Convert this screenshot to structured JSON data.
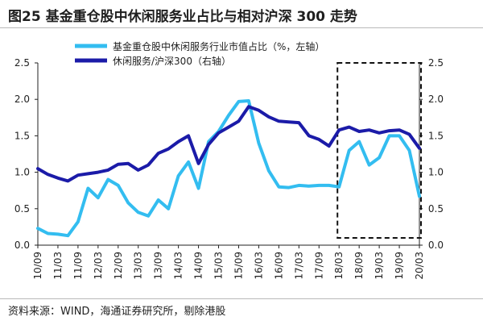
{
  "title": "图25 基金重仓股中休闲服务业占比与相对沪深 300 走势",
  "source": "资料来源：WIND，海通证券研究所，剔除港股",
  "colors": {
    "light_series": "#33bdf0",
    "dark_series": "#1b1ba8",
    "axis": "#222222",
    "highlight_box": "#111111"
  },
  "chart_data": {
    "type": "line",
    "title": "",
    "xlabel": "",
    "ylabel_left": "",
    "ylabel_right": "",
    "ylim_left": [
      0,
      2.5
    ],
    "ylim_right": [
      0,
      2.5
    ],
    "yticks_left": [
      "0.0",
      "0.5",
      "1.0",
      "1.5",
      "2.0",
      "2.5"
    ],
    "yticks_right": [
      "0.0",
      "0.5",
      "1.0",
      "1.5",
      "2.0",
      "2.5"
    ],
    "grid": false,
    "legend_position": "top-center",
    "x_tick_labels": [
      "10/09",
      "11/03",
      "11/09",
      "12/03",
      "12/09",
      "13/03",
      "13/09",
      "14/03",
      "14/09",
      "15/03",
      "15/09",
      "16/03",
      "16/09",
      "17/03",
      "17/09",
      "18/03",
      "18/09",
      "19/03",
      "19/09",
      "20/03"
    ],
    "x": [
      "10/09",
      "10/12",
      "11/03",
      "11/06",
      "11/09",
      "11/12",
      "12/03",
      "12/06",
      "12/09",
      "12/12",
      "13/03",
      "13/06",
      "13/09",
      "13/12",
      "14/03",
      "14/06",
      "14/09",
      "14/12",
      "15/03",
      "15/06",
      "15/09",
      "15/12",
      "16/03",
      "16/06",
      "16/09",
      "16/12",
      "17/03",
      "17/06",
      "17/09",
      "17/12",
      "18/03",
      "18/06",
      "18/09",
      "18/12",
      "19/03",
      "19/06",
      "19/09",
      "19/12",
      "20/03"
    ],
    "series": [
      {
        "name": "基金重仓股中休闲服务行业市值占比（%，左轴）",
        "axis": "left",
        "values": [
          0.23,
          0.16,
          0.15,
          0.13,
          0.32,
          0.78,
          0.65,
          0.9,
          0.82,
          0.58,
          0.45,
          0.4,
          0.62,
          0.5,
          0.95,
          1.14,
          0.78,
          1.42,
          1.56,
          1.78,
          1.97,
          1.98,
          1.4,
          1.02,
          0.8,
          0.79,
          0.82,
          0.81,
          0.82,
          0.82,
          0.8,
          1.3,
          1.42,
          1.1,
          1.2,
          1.5,
          1.5,
          1.3,
          0.67
        ]
      },
      {
        "name": "休闲服务/沪深300（右轴）",
        "axis": "right",
        "values": [
          1.05,
          0.97,
          0.92,
          0.88,
          0.96,
          0.98,
          1.0,
          1.03,
          1.11,
          1.12,
          1.03,
          1.1,
          1.26,
          1.32,
          1.42,
          1.5,
          1.12,
          1.38,
          1.54,
          1.62,
          1.7,
          1.9,
          1.85,
          1.76,
          1.7,
          1.69,
          1.68,
          1.5,
          1.45,
          1.36,
          1.58,
          1.62,
          1.56,
          1.58,
          1.54,
          1.57,
          1.58,
          1.52,
          1.33
        ]
      }
    ],
    "highlight_range": [
      "18/03",
      "20/03"
    ]
  }
}
